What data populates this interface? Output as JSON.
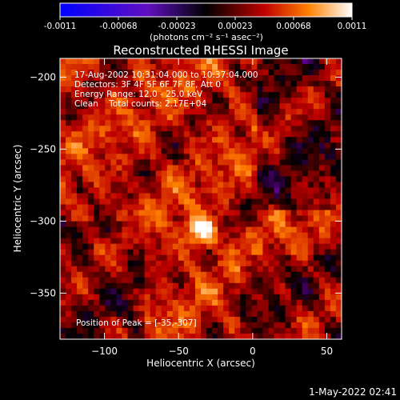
{
  "colorbar": {
    "ticks": [
      "-0.0011",
      "-0.00068",
      "-0.00023",
      "0.00023",
      "0.00068",
      "0.0011"
    ],
    "unit_label": "(photons cm⁻² s⁻¹ asec⁻²)",
    "colors": [
      "#0000ff",
      "#8000c0",
      "#000000",
      "#c00000",
      "#ff8000",
      "#ffffff"
    ]
  },
  "chart_data": {
    "type": "heatmap",
    "title": "Reconstructed RHESSI Image",
    "xlabel": "Heliocentric X (arcsec)",
    "ylabel": "Heliocentric Y (arcsec)",
    "xlim": [
      -130,
      60
    ],
    "ylim": [
      -382,
      -187
    ],
    "xticks": [
      -100,
      -50,
      0,
      50
    ],
    "yticks": [
      -200,
      -250,
      -300,
      -350
    ],
    "annotations": [
      "17-Aug-2002 10:31:04.000 to 10:37:04.000",
      "Detectors: 3F 4F 5F 6F 7F 8F, Att 0",
      "Energy Range: 12.0 - 25.0 keV",
      "Clean    Total counts: 2.17E+04"
    ],
    "peak_label": "Position of Peak = [-35,-307]",
    "peak": [
      -35,
      -307
    ]
  },
  "footer": {
    "timestamp": "1-May-2022 02:41"
  }
}
